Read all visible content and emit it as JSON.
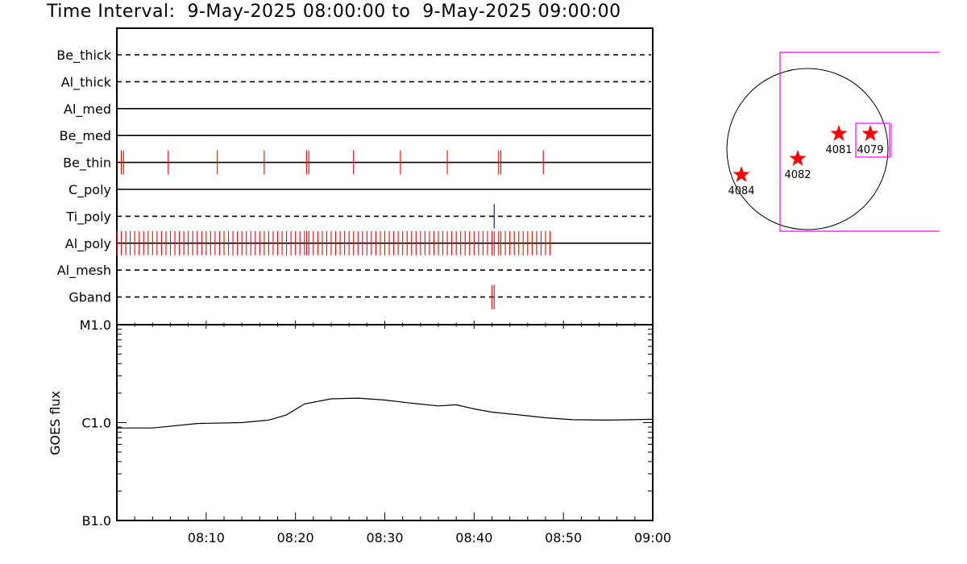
{
  "title": "Time Interval:  9-May-2025 08:00:00 to  9-May-2025 09:00:00",
  "chart_data": [
    {
      "type": "event-timeline",
      "x_range": [
        "08:00",
        "09:00"
      ],
      "rows": [
        {
          "label": "Be_thick",
          "style": "dashed",
          "events": []
        },
        {
          "label": "Al_thick",
          "style": "dashed",
          "events": []
        },
        {
          "label": "Al_med",
          "style": "solid",
          "events": []
        },
        {
          "label": "Be_med",
          "style": "solid",
          "events": []
        },
        {
          "label": "Be_thin",
          "style": "solid",
          "color": "#ff0000",
          "events": [
            "08:00:30",
            "08:00:45",
            "08:05:45",
            "08:11:15",
            "08:16:30",
            "08:21:15",
            "08:21:30",
            "08:26:30",
            "08:31:45",
            "08:37:00",
            "08:42:45",
            "08:43:00",
            "08:47:45"
          ]
        },
        {
          "label": "C_poly",
          "style": "solid",
          "events": []
        },
        {
          "label": "Ti_poly",
          "style": "dashed",
          "color": "#0000aa",
          "events": [
            "08:42:15"
          ]
        },
        {
          "label": "Al_poly",
          "style": "solid",
          "color": "#ff0000",
          "events_note": "dense periodic sequence",
          "events": [
            "08:00:00",
            "08:00:30",
            "08:01:00",
            "08:01:30",
            "08:02:00",
            "08:02:30",
            "08:03:00",
            "08:03:30",
            "08:04:00",
            "08:04:30",
            "08:05:00",
            "08:05:30",
            "08:06:00",
            "08:06:30",
            "08:07:00",
            "08:07:30",
            "08:08:00",
            "08:08:30",
            "08:09:00",
            "08:09:30",
            "08:10:00",
            "08:10:30",
            "08:11:00",
            "08:11:30",
            "08:12:00",
            "08:12:30",
            "08:13:00",
            "08:13:30",
            "08:14:00",
            "08:14:30",
            "08:15:00",
            "08:15:30",
            "08:16:00",
            "08:16:30",
            "08:17:00",
            "08:17:30",
            "08:18:00",
            "08:18:30",
            "08:19:00",
            "08:19:30",
            "08:20:00",
            "08:20:30",
            "08:21:00",
            "08:21:15",
            "08:21:30",
            "08:22:00",
            "08:22:30",
            "08:23:00",
            "08:23:30",
            "08:24:00",
            "08:24:30",
            "08:25:00",
            "08:25:30",
            "08:26:00",
            "08:26:30",
            "08:27:00",
            "08:27:30",
            "08:28:00",
            "08:28:30",
            "08:29:00",
            "08:29:30",
            "08:30:00",
            "08:30:30",
            "08:31:00",
            "08:31:30",
            "08:32:00",
            "08:32:30",
            "08:33:00",
            "08:33:30",
            "08:34:00",
            "08:34:30",
            "08:35:00",
            "08:35:30",
            "08:36:00",
            "08:36:30",
            "08:37:00",
            "08:37:30",
            "08:38:00",
            "08:38:30",
            "08:39:00",
            "08:39:30",
            "08:40:00",
            "08:40:30",
            "08:41:00",
            "08:41:30",
            "08:42:00",
            "08:42:15",
            "08:42:45",
            "08:43:00",
            "08:43:30",
            "08:44:00",
            "08:44:30",
            "08:45:00",
            "08:45:30",
            "08:46:00",
            "08:46:30",
            "08:47:00",
            "08:47:30",
            "08:48:00",
            "08:48:30"
          ]
        },
        {
          "label": "Al_mesh",
          "style": "dashed",
          "events": []
        },
        {
          "label": "Gband",
          "style": "dashed",
          "color": "#ff0000",
          "events": [
            "08:42:00",
            "08:42:15"
          ]
        }
      ]
    },
    {
      "type": "line",
      "ylabel": "GOES flux",
      "y_scale": "log",
      "yticks": [
        "B1.0",
        "C1.0",
        "M1.0"
      ],
      "ylim": [
        "B1.0",
        "M1.0"
      ],
      "xticks": [
        "08:10",
        "08:20",
        "08:30",
        "08:40",
        "08:50",
        "09:00"
      ],
      "x": [
        "08:00",
        "08:04",
        "08:09",
        "08:14",
        "08:17",
        "08:19",
        "08:21",
        "08:24",
        "08:27",
        "08:30",
        "08:33",
        "08:36",
        "08:38",
        "08:40",
        "08:42",
        "08:45",
        "08:48",
        "08:51",
        "08:55",
        "09:00"
      ],
      "y": [
        8.8e-07,
        8.8e-07,
        9.8e-07,
        1e-06,
        1.06e-06,
        1.2e-06,
        1.55e-06,
        1.75e-06,
        1.78e-06,
        1.7e-06,
        1.58e-06,
        1.48e-06,
        1.52e-06,
        1.38e-06,
        1.28e-06,
        1.2e-06,
        1.12e-06,
        1.07e-06,
        1.06e-06,
        1.08e-06
      ]
    },
    {
      "type": "scatter",
      "points": [
        {
          "label": "4084",
          "color": "#ff0000"
        },
        {
          "label": "4082",
          "color": "#ff0000"
        },
        {
          "label": "4081",
          "color": "#ff0000"
        },
        {
          "label": "4079",
          "color": "#ff0000"
        }
      ],
      "frame_color": "#ff00ff"
    }
  ]
}
